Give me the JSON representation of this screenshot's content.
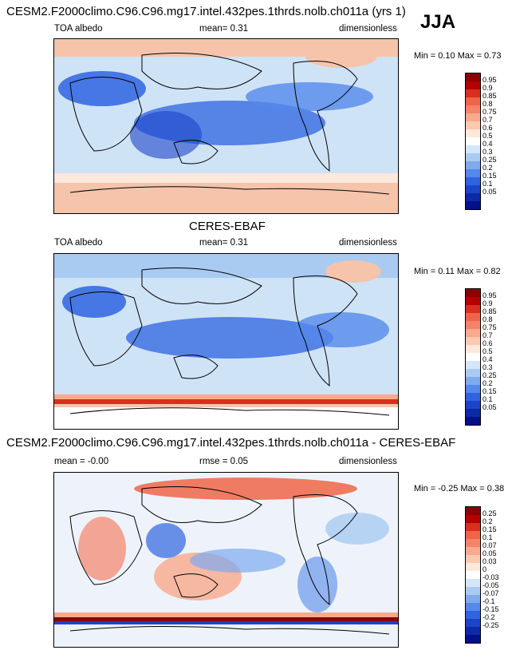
{
  "model_title": "CESM2.F2000climo.C96.C96.mg17.intel.432pes.1thrds.nolb.ch011a (yrs 1)",
  "season": "JJA",
  "panels": [
    {
      "title": "",
      "left_label": "TOA albedo",
      "mid_label": "mean=  0.31",
      "right_label": "dimensionless",
      "minmax": "Min =  0.10 Max =  0.73",
      "colorbar": {
        "labels": [
          "0.95",
          "0.9",
          "0.85",
          "0.8",
          "0.75",
          "0.7",
          "0.6",
          "0.5",
          "0.4",
          "0.3",
          "0.25",
          "0.2",
          "0.15",
          "0.1",
          "0.05"
        ],
        "colors": [
          "#8b0000",
          "#b30000",
          "#d7301f",
          "#ef6548",
          "#f4836a",
          "#f9a98c",
          "#fcc9b0",
          "#fde8dc",
          "#ffffff",
          "#d4e6f9",
          "#a9cbf2",
          "#7eaaee",
          "#5488ea",
          "#2f64e0",
          "#1c44c8",
          "#0c2aa6",
          "#00118a"
        ]
      }
    },
    {
      "title": "CERES-EBAF",
      "left_label": "TOA albedo",
      "mid_label": "mean=  0.31",
      "right_label": "dimensionless",
      "minmax": "Min =  0.11 Max =  0.82",
      "colorbar": {
        "labels": [
          "0.95",
          "0.9",
          "0.85",
          "0.8",
          "0.75",
          "0.7",
          "0.6",
          "0.5",
          "0.4",
          "0.3",
          "0.25",
          "0.2",
          "0.15",
          "0.1",
          "0.05"
        ],
        "colors": [
          "#8b0000",
          "#b30000",
          "#d7301f",
          "#ef6548",
          "#f4836a",
          "#f9a98c",
          "#fcc9b0",
          "#fde8dc",
          "#ffffff",
          "#d4e6f9",
          "#a9cbf2",
          "#7eaaee",
          "#5488ea",
          "#2f64e0",
          "#1c44c8",
          "#0c2aa6",
          "#00118a"
        ]
      }
    },
    {
      "title": "CESM2.F2000climo.C96.C96.mg17.intel.432pes.1thrds.nolb.ch011a - CERES-EBAF",
      "left_label": "mean =  -0.00",
      "mid_label": "rmse =  0.05",
      "right_label": "dimensionless",
      "minmax": "Min =  -0.25 Max =  0.38",
      "colorbar": {
        "labels": [
          "0.25",
          "0.2",
          "0.15",
          "0.1",
          "0.07",
          "0.05",
          "0.03",
          "0",
          "-0.03",
          "-0.05",
          "-0.07",
          "-0.1",
          "-0.15",
          "-0.2",
          "-0.25"
        ],
        "colors": [
          "#8b0000",
          "#b30000",
          "#d7301f",
          "#ef6548",
          "#f4836a",
          "#f9a98c",
          "#fcc9b0",
          "#fde8dc",
          "#ffffff",
          "#d4e6f9",
          "#a9cbf2",
          "#7eaaee",
          "#5488ea",
          "#2f64e0",
          "#1c44c8",
          "#0c2aa6",
          "#00118a"
        ]
      }
    }
  ]
}
